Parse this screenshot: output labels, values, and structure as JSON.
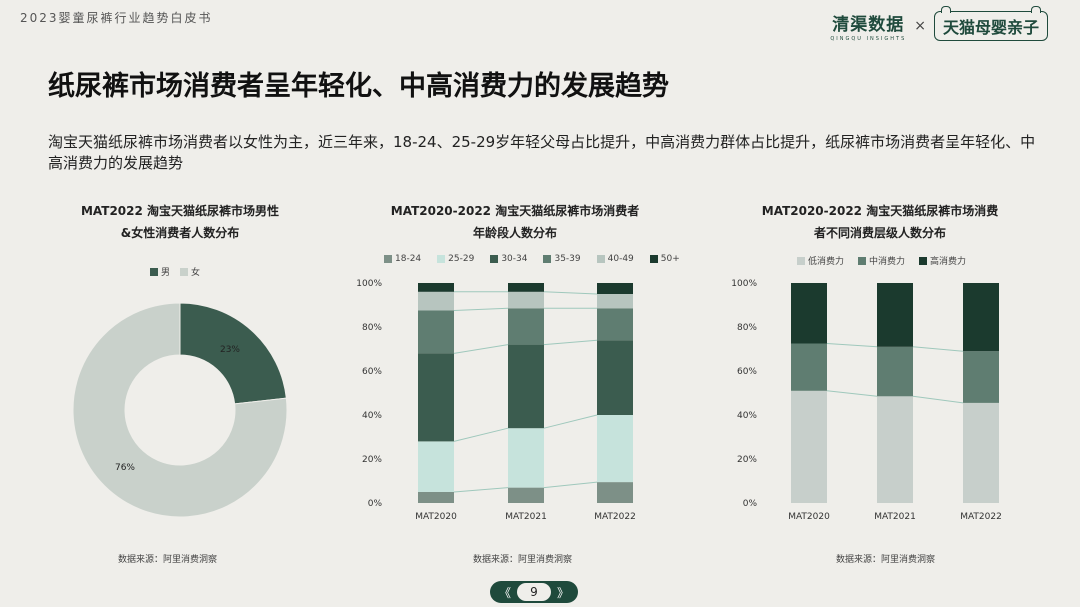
{
  "header": {
    "report_title": "2023婴童尿裤行业趋势白皮书",
    "brand_left_cn": "清渠数据",
    "brand_left_en": "QINGQU INSIGHTS",
    "brand_sep": "×",
    "brand_right": "天猫母婴亲子"
  },
  "page": {
    "title": "纸尿裤市场消费者呈年轻化、中高消费力的发展趋势",
    "subtitle": "淘宝天猫纸尿裤市场消费者以女性为主，近三年来，18-24、25-29岁年轻父母占比提升，中高消费力群体占比提升，纸尿裤市场消费者呈年轻化、中高消费力的发展趋势",
    "page_number": "9",
    "nav_prev": "《",
    "nav_next": "》"
  },
  "sources": {
    "left": "数据来源：阿里消费洞察",
    "middle": "数据来源：阿里消费洞察",
    "right": "数据来源：阿里消费洞察"
  },
  "chart_data": [
    {
      "type": "pie",
      "title_line1": "MAT2022 淘宝天猫纸尿裤市场男性",
      "title_line2": "&女性消费者人数分布",
      "categories": [
        "男",
        "女"
      ],
      "values": [
        23,
        76
      ],
      "labels": [
        "23%",
        "76%"
      ],
      "colors": [
        "#3b5c4f",
        "#c9d1cb"
      ],
      "legend": "top"
    },
    {
      "type": "bar",
      "stacked": true,
      "percent": true,
      "title_line1": "MAT2020-2022 淘宝天猫纸尿裤市场消费者",
      "title_line2": "年龄段人数分布",
      "categories": [
        "MAT2020",
        "MAT2021",
        "MAT2022"
      ],
      "y_ticks": [
        "0%",
        "20%",
        "40%",
        "60%",
        "80%",
        "100%"
      ],
      "ylim": [
        0,
        100
      ],
      "series": [
        {
          "name": "18-24",
          "color": "#7d9087",
          "values": [
            5,
            7,
            9.5
          ]
        },
        {
          "name": "25-29",
          "color": "#c6e3dc",
          "values": [
            23,
            27,
            30.5
          ]
        },
        {
          "name": "30-34",
          "color": "#3b5c4f",
          "values": [
            40,
            38,
            34
          ]
        },
        {
          "name": "35-39",
          "color": "#5f7d71",
          "values": [
            19.5,
            16.5,
            14.5
          ]
        },
        {
          "name": "40-49",
          "color": "#b7c5bf",
          "values": [
            8.5,
            7.5,
            6.5
          ]
        },
        {
          "name": "50+",
          "color": "#1b3a2e",
          "values": [
            4,
            4,
            5
          ]
        }
      ],
      "legend": "top"
    },
    {
      "type": "bar",
      "stacked": true,
      "percent": true,
      "title_line1": "MAT2020-2022 淘宝天猫纸尿裤市场消费",
      "title_line2": "者不同消费层级人数分布",
      "categories": [
        "MAT2020",
        "MAT2021",
        "MAT2022"
      ],
      "y_ticks": [
        "0%",
        "20%",
        "40%",
        "60%",
        "80%",
        "100%"
      ],
      "ylim": [
        0,
        100
      ],
      "series": [
        {
          "name": "低消费力",
          "color": "#c7cfcb",
          "values": [
            51,
            48.5,
            45.5
          ]
        },
        {
          "name": "中消费力",
          "color": "#5f7d71",
          "values": [
            21.5,
            22.5,
            23.5
          ]
        },
        {
          "name": "高消费力",
          "color": "#1b3a2e",
          "values": [
            27.5,
            29,
            31
          ]
        }
      ],
      "legend": "top"
    }
  ]
}
